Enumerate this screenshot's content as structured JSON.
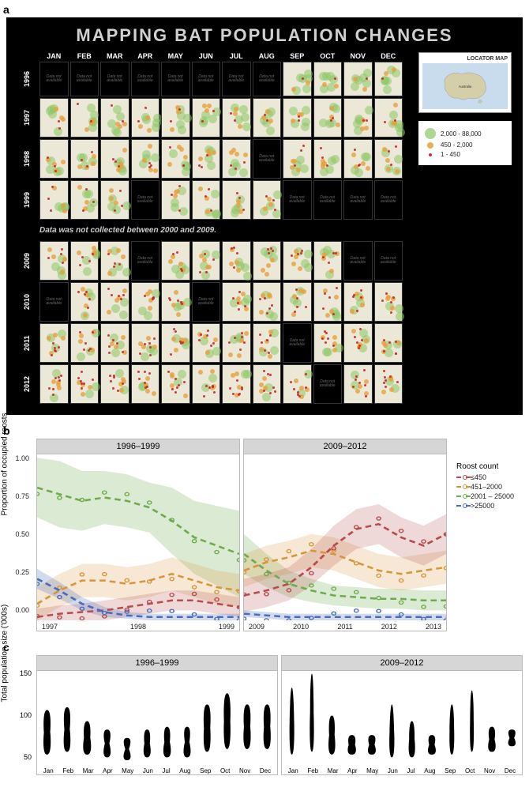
{
  "panelA": {
    "title": "MAPPING BAT POPULATION CHANGES",
    "months": [
      "JAN",
      "FEB",
      "MAR",
      "APR",
      "MAY",
      "JUN",
      "JUL",
      "AUG",
      "SEP",
      "OCT",
      "NOV",
      "DEC"
    ],
    "years_block1": [
      "1996",
      "1997",
      "1998",
      "1999"
    ],
    "gap_note": "Data was not collected between 2000 and 2009.",
    "years_block2": [
      "2009",
      "2010",
      "2011",
      "2012"
    ],
    "na_text": "Data not available",
    "availability": {
      "1996": [
        0,
        0,
        0,
        0,
        0,
        0,
        0,
        0,
        1,
        1,
        1,
        1
      ],
      "1997": [
        1,
        1,
        1,
        1,
        1,
        1,
        1,
        1,
        1,
        1,
        1,
        1
      ],
      "1998": [
        1,
        1,
        1,
        1,
        1,
        1,
        1,
        0,
        1,
        1,
        1,
        1
      ],
      "1999": [
        1,
        1,
        1,
        0,
        1,
        1,
        1,
        1,
        0,
        0,
        0,
        0
      ],
      "2009": [
        1,
        1,
        1,
        0,
        1,
        1,
        1,
        1,
        1,
        1,
        0,
        0
      ],
      "2010": [
        0,
        1,
        1,
        1,
        1,
        0,
        1,
        1,
        1,
        1,
        1,
        1
      ],
      "2011": [
        1,
        1,
        1,
        1,
        1,
        1,
        1,
        1,
        0,
        1,
        1,
        1
      ],
      "2012": [
        1,
        1,
        1,
        1,
        1,
        1,
        1,
        1,
        1,
        0,
        1,
        1
      ]
    },
    "dot_density": {
      "1996": {
        "large": 6,
        "med": 2,
        "small": 1
      },
      "1997": {
        "large": 5,
        "med": 3,
        "small": 2
      },
      "1998": {
        "large": 4,
        "med": 4,
        "small": 3
      },
      "1999": {
        "large": 4,
        "med": 3,
        "small": 3
      },
      "2009": {
        "large": 4,
        "med": 4,
        "small": 4
      },
      "2010": {
        "large": 3,
        "med": 4,
        "small": 5
      },
      "2011": {
        "large": 3,
        "med": 4,
        "small": 6
      },
      "2012": {
        "large": 2,
        "med": 4,
        "small": 7
      }
    },
    "locator_title": "LOCATOR MAP",
    "locator_label": "Australia",
    "size_legend": [
      {
        "cls": "lg",
        "label": "2,000 - 88,000"
      },
      {
        "cls": "md",
        "label": "450 - 2,000"
      },
      {
        "cls": "sm",
        "label": "1 - 450"
      }
    ],
    "colors": {
      "bg": "#000000",
      "map_bg": "#ebe8d8",
      "large": "rgba(140,198,101,0.55)",
      "med": "rgba(230,160,60,0.8)",
      "small": "rgba(200,40,40,0.9)"
    }
  },
  "panelB": {
    "y_label": "Proportion of occupied roosts",
    "y_ticks": [
      "1.00",
      "0.75",
      "0.50",
      "0.25",
      "0.00"
    ],
    "facets": [
      {
        "title": "1996–1999",
        "x_ticks": [
          "1997",
          "1998",
          "1999"
        ],
        "xlim": [
          1996.5,
          1999.8
        ]
      },
      {
        "title": "2009–2012",
        "x_ticks": [
          "2009",
          "2010",
          "2011",
          "2012",
          "2013"
        ],
        "xlim": [
          2009,
          2013
        ]
      }
    ],
    "legend_title": "Roost count",
    "legend": [
      {
        "label": "≤450",
        "color": "#b84c4c",
        "band": "rgba(184,76,76,0.22)"
      },
      {
        "label": "451–2000",
        "color": "#d8953a",
        "band": "rgba(216,149,58,0.22)"
      },
      {
        "label": "2001 – 25000",
        "color": "#6fab4e",
        "band": "rgba(111,171,78,0.25)"
      },
      {
        "label": ">25000",
        "color": "#4a6db8",
        "band": "rgba(74,109,184,0.25)"
      }
    ],
    "series_left": {
      "green": {
        "y": [
          0.8,
          0.76,
          0.72,
          0.74,
          0.72,
          0.68,
          0.6,
          0.5,
          0.45,
          0.4
        ],
        "band": [
          0.18,
          0.2,
          0.18,
          0.16,
          0.16,
          0.15,
          0.2,
          0.22,
          0.24,
          0.26
        ]
      },
      "orange": {
        "y": [
          0.1,
          0.18,
          0.24,
          0.24,
          0.22,
          0.24,
          0.28,
          0.24,
          0.2,
          0.18
        ],
        "band": [
          0.1,
          0.1,
          0.1,
          0.1,
          0.1,
          0.1,
          0.1,
          0.1,
          0.1,
          0.1
        ]
      },
      "red": {
        "y": [
          0.02,
          0.04,
          0.05,
          0.06,
          0.08,
          0.1,
          0.12,
          0.12,
          0.1,
          0.08
        ],
        "band": [
          0.05,
          0.05,
          0.05,
          0.06,
          0.06,
          0.06,
          0.06,
          0.06,
          0.06,
          0.06
        ]
      },
      "blue": {
        "y": [
          0.25,
          0.18,
          0.1,
          0.05,
          0.03,
          0.02,
          0.02,
          0.02,
          0.02,
          0.02
        ],
        "band": [
          0.06,
          0.05,
          0.04,
          0.03,
          0.02,
          0.02,
          0.02,
          0.02,
          0.02,
          0.02
        ]
      }
    },
    "series_right": {
      "green": {
        "y": [
          0.4,
          0.3,
          0.22,
          0.18,
          0.15,
          0.14,
          0.13,
          0.13,
          0.12,
          0.12
        ],
        "band": [
          0.12,
          0.1,
          0.08,
          0.07,
          0.06,
          0.06,
          0.06,
          0.06,
          0.06,
          0.06
        ]
      },
      "orange": {
        "y": [
          0.3,
          0.35,
          0.38,
          0.42,
          0.4,
          0.35,
          0.3,
          0.28,
          0.3,
          0.32
        ],
        "band": [
          0.1,
          0.1,
          0.1,
          0.1,
          0.1,
          0.1,
          0.1,
          0.1,
          0.1,
          0.1
        ]
      },
      "red": {
        "y": [
          0.15,
          0.18,
          0.22,
          0.32,
          0.45,
          0.55,
          0.58,
          0.5,
          0.45,
          0.52
        ],
        "band": [
          0.1,
          0.1,
          0.1,
          0.11,
          0.12,
          0.12,
          0.12,
          0.12,
          0.12,
          0.12
        ]
      },
      "blue": {
        "y": [
          0.04,
          0.03,
          0.02,
          0.02,
          0.02,
          0.02,
          0.02,
          0.02,
          0.02,
          0.02
        ],
        "band": [
          0.02,
          0.02,
          0.02,
          0.02,
          0.02,
          0.02,
          0.02,
          0.02,
          0.02,
          0.02
        ]
      }
    }
  },
  "panelC": {
    "y_label": "Total population size ('000s)",
    "y_ticks": [
      "150",
      "100",
      "50"
    ],
    "ylim": [
      20,
      190
    ],
    "facets": [
      {
        "title": "1996–1999"
      },
      {
        "title": "2009–2012"
      }
    ],
    "x_ticks": [
      "Jan",
      "Feb",
      "Mar",
      "Apr",
      "May",
      "Jun",
      "Jul",
      "Aug",
      "Sep",
      "Oct",
      "Nov",
      "Dec"
    ],
    "violins_left": [
      {
        "lo": 40,
        "hi": 120,
        "wL": 0.6,
        "wM": 0.35,
        "wH": 0.55
      },
      {
        "lo": 45,
        "hi": 125,
        "wL": 0.6,
        "wM": 0.3,
        "wH": 0.55
      },
      {
        "lo": 40,
        "hi": 100,
        "wL": 0.7,
        "wM": 0.35,
        "wH": 0.5
      },
      {
        "lo": 35,
        "hi": 85,
        "wL": 0.7,
        "wM": 0.25,
        "wH": 0.65
      },
      {
        "lo": 30,
        "hi": 70,
        "wL": 0.75,
        "wM": 0.2,
        "wH": 0.7
      },
      {
        "lo": 35,
        "hi": 85,
        "wL": 0.65,
        "wM": 0.3,
        "wH": 0.5
      },
      {
        "lo": 35,
        "hi": 90,
        "wL": 0.7,
        "wM": 0.3,
        "wH": 0.5
      },
      {
        "lo": 35,
        "hi": 90,
        "wL": 0.7,
        "wM": 0.25,
        "wH": 0.55
      },
      {
        "lo": 45,
        "hi": 130,
        "wL": 0.55,
        "wM": 0.35,
        "wH": 0.55
      },
      {
        "lo": 50,
        "hi": 150,
        "wL": 0.5,
        "wM": 0.35,
        "wH": 0.5
      },
      {
        "lo": 50,
        "hi": 130,
        "wL": 0.6,
        "wM": 0.35,
        "wH": 0.55
      },
      {
        "lo": 50,
        "hi": 130,
        "wL": 0.6,
        "wM": 0.35,
        "wH": 0.55
      }
    ],
    "violins_right": [
      {
        "lo": 40,
        "hi": 160,
        "wL": 0.35,
        "wM": 0.25,
        "wH": 0.2
      },
      {
        "lo": 45,
        "hi": 185,
        "wL": 0.35,
        "wM": 0.2,
        "wH": 0.2
      },
      {
        "lo": 40,
        "hi": 110,
        "wL": 0.6,
        "wM": 0.3,
        "wH": 0.45
      },
      {
        "lo": 40,
        "hi": 75,
        "wL": 0.75,
        "wM": 0.35,
        "wH": 0.6
      },
      {
        "lo": 40,
        "hi": 75,
        "wL": 0.75,
        "wM": 0.3,
        "wH": 0.65
      },
      {
        "lo": 35,
        "hi": 130,
        "wL": 0.4,
        "wM": 0.25,
        "wH": 0.2
      },
      {
        "lo": 35,
        "hi": 100,
        "wL": 0.55,
        "wM": 0.3,
        "wH": 0.35
      },
      {
        "lo": 40,
        "hi": 75,
        "wL": 0.75,
        "wM": 0.3,
        "wH": 0.6
      },
      {
        "lo": 40,
        "hi": 130,
        "wL": 0.35,
        "wM": 0.25,
        "wH": 0.25
      },
      {
        "lo": 45,
        "hi": 155,
        "wL": 0.3,
        "wM": 0.2,
        "wH": 0.2
      },
      {
        "lo": 45,
        "hi": 90,
        "wL": 0.7,
        "wM": 0.3,
        "wH": 0.55
      },
      {
        "lo": 55,
        "hi": 85,
        "wL": 0.75,
        "wM": 0.25,
        "wH": 0.7
      }
    ],
    "fill": "#000000"
  },
  "labels": {
    "a": "a",
    "b": "b",
    "c": "c"
  }
}
